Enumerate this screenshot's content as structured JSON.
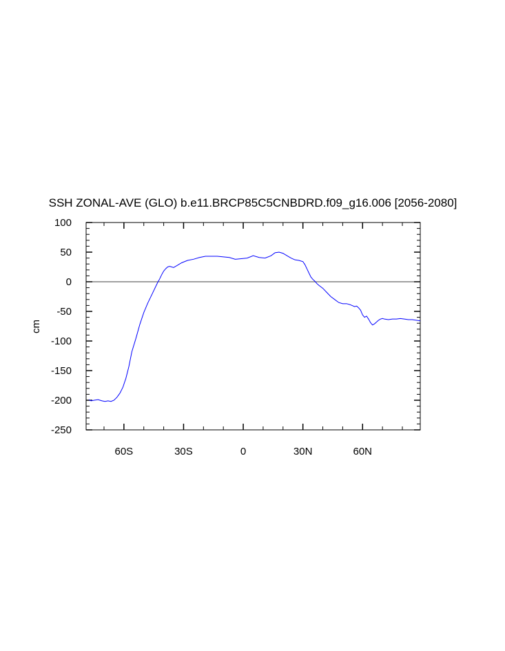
{
  "chart_data": {
    "type": "line",
    "title": "SSH ZONAL-AVE (GLO) b.e11.BRCP85C5CNBDRD.f09_g16.006 [2056-2080]",
    "xlabel": "",
    "ylabel": "cm",
    "xlim": [
      -79,
      89
    ],
    "ylim": [
      -250,
      100
    ],
    "x_ticks": [
      {
        "value": -60,
        "label": "60S"
      },
      {
        "value": -30,
        "label": "30S"
      },
      {
        "value": 0,
        "label": "0"
      },
      {
        "value": 30,
        "label": "30N"
      },
      {
        "value": 60,
        "label": "60N"
      }
    ],
    "y_ticks": [
      {
        "value": 100,
        "label": "100"
      },
      {
        "value": 50,
        "label": "50"
      },
      {
        "value": 0,
        "label": "0"
      },
      {
        "value": -50,
        "label": "-50"
      },
      {
        "value": -100,
        "label": "-100"
      },
      {
        "value": -150,
        "label": "-150"
      },
      {
        "value": -200,
        "label": "-200"
      },
      {
        "value": -250,
        "label": "-250"
      }
    ],
    "reference_line": 0,
    "grid": false,
    "line_color": "#0000ff",
    "reference_color": "#000000",
    "series": [
      {
        "x": [
          -77.5,
          -76.5,
          -75,
          -73,
          -71,
          -69.5,
          -68,
          -66.5,
          -65,
          -63.5,
          -62,
          -60.5,
          -59,
          -57.5,
          -56,
          -54,
          -52,
          -50,
          -48,
          -46,
          -44,
          -43,
          -42,
          -41,
          -40,
          -39,
          -38,
          -37,
          -36,
          -35,
          -33,
          -31,
          -28,
          -25,
          -22,
          -19,
          -16,
          -13,
          -10,
          -7,
          -4,
          -1,
          2,
          5,
          8,
          11,
          14,
          16,
          18,
          20,
          22,
          24,
          26,
          28,
          30,
          31,
          32,
          33,
          34,
          35,
          36,
          37,
          38,
          40,
          42,
          44,
          46,
          48,
          50,
          52,
          54,
          56,
          57,
          58,
          59,
          60,
          61,
          62,
          63,
          64,
          65,
          66,
          67,
          68,
          69,
          70,
          71,
          73,
          75,
          77,
          79,
          81,
          83,
          85,
          87,
          89
        ],
        "y": [
          -199,
          -201,
          -200,
          -199,
          -201,
          -202,
          -201,
          -202,
          -200,
          -195,
          -188,
          -178,
          -163,
          -143,
          -118,
          -96,
          -72,
          -52,
          -36,
          -22,
          -8,
          -1,
          5,
          12,
          18,
          22,
          25,
          26,
          25,
          24,
          28,
          32,
          36,
          38,
          41,
          43,
          43,
          43,
          42,
          41,
          38,
          39,
          40,
          44,
          41,
          40,
          44,
          49,
          50,
          48,
          44,
          40,
          37,
          36,
          34,
          29,
          22,
          15,
          8,
          4,
          1,
          -3,
          -6,
          -11,
          -18,
          -25,
          -30,
          -35,
          -37,
          -37,
          -39,
          -42,
          -41,
          -44,
          -48,
          -56,
          -60,
          -58,
          -63,
          -69,
          -73,
          -71,
          -68,
          -65,
          -63,
          -62,
          -63,
          -64,
          -63,
          -63,
          -62,
          -63,
          -64,
          -64,
          -65,
          -66
        ]
      }
    ]
  }
}
